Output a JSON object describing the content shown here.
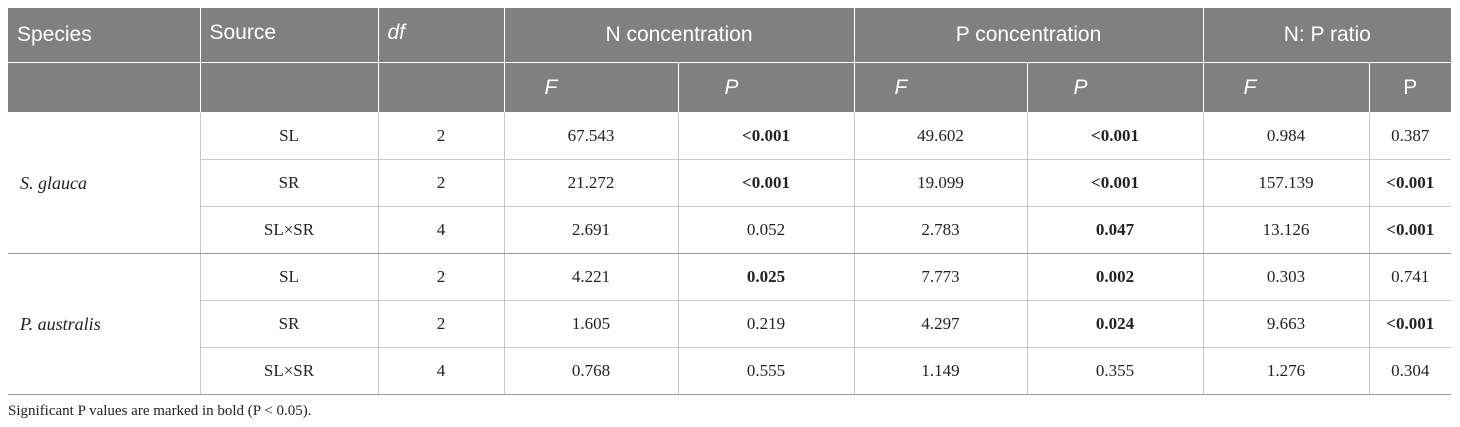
{
  "table": {
    "headers": {
      "species": "Species",
      "source": "Source",
      "df": "df",
      "n_concentration": "N concentration",
      "p_concentration": "P concentration",
      "np_ratio": "N: P ratio",
      "sub": [
        "F",
        "P",
        "F",
        "P",
        "F",
        "P"
      ]
    },
    "groups": [
      {
        "species": "S. glauca",
        "rows": [
          {
            "source": "SL",
            "df": "2",
            "nF": "67.543",
            "nP": "<0.001",
            "pF": "49.602",
            "pP": "<0.001",
            "rF": "0.984",
            "rP": "0.387"
          },
          {
            "source": "SR",
            "df": "2",
            "nF": "21.272",
            "nP": "<0.001",
            "pF": "19.099",
            "pP": "<0.001",
            "rF": "157.139",
            "rP": "<0.001"
          },
          {
            "source": "SL×SR",
            "df": "4",
            "nF": "2.691",
            "nP": "0.052",
            "pF": "2.783",
            "pP": "0.047",
            "rF": "13.126",
            "rP": "<0.001"
          }
        ]
      },
      {
        "species": "P. australis",
        "rows": [
          {
            "source": "SL",
            "df": "2",
            "nF": "4.221",
            "nP": "0.025",
            "pF": "7.773",
            "pP": "0.002",
            "rF": "0.303",
            "rP": "0.741"
          },
          {
            "source": "SR",
            "df": "2",
            "nF": "1.605",
            "nP": "0.219",
            "pF": "4.297",
            "pP": "0.024",
            "rF": "9.663",
            "rP": "<0.001"
          },
          {
            "source": "SL×SR",
            "df": "4",
            "nF": "0.768",
            "nP": "0.555",
            "pF": "1.149",
            "pP": "0.355",
            "rF": "1.276",
            "rP": "0.304"
          }
        ]
      }
    ]
  },
  "footnote": "Significant P values are marked in bold (P < 0.05).",
  "colors": {
    "header_bg": "#808080",
    "header_text": "#ffffff",
    "grid": "#c8c8c8"
  }
}
